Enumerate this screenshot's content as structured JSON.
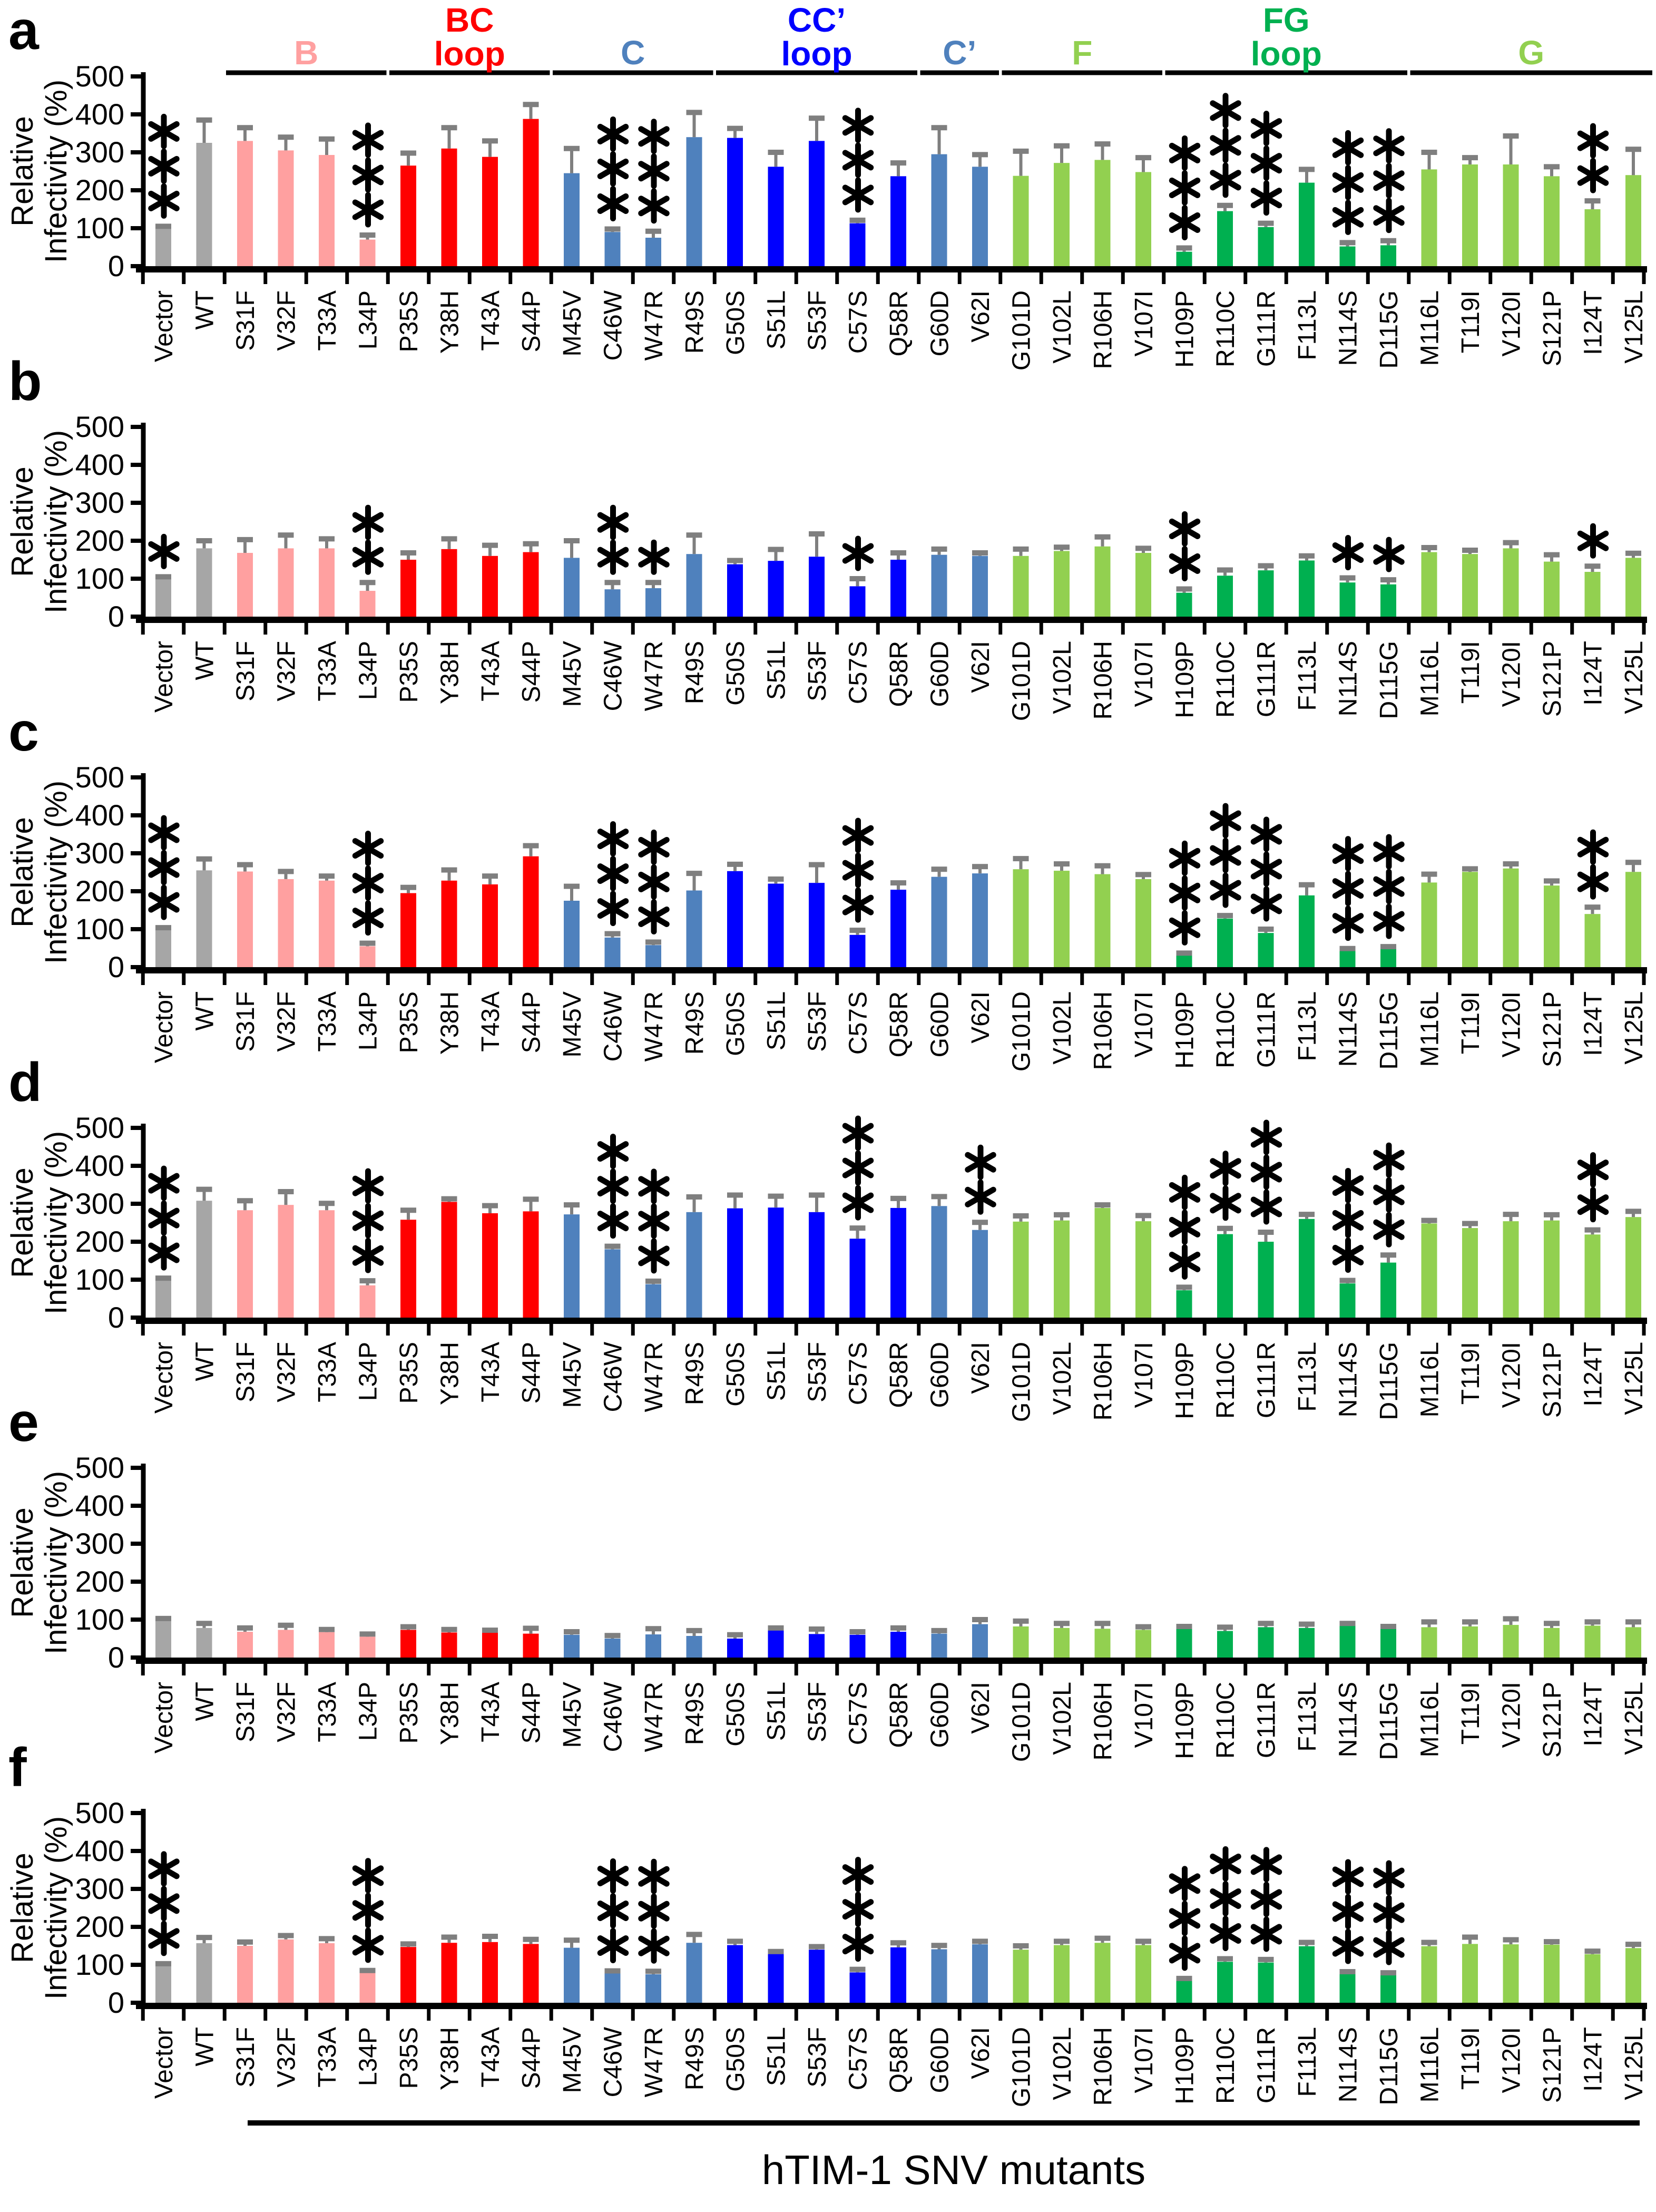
{
  "figure": {
    "panel_letters": [
      "a",
      "b",
      "c",
      "d",
      "e",
      "f"
    ],
    "xaxis_title": "hTIM-1 SNV mutants",
    "ylabel_lines": [
      "Relative",
      "Infectivity (%)"
    ],
    "colors": {
      "gray": "#A6A6A6",
      "pink": "#FFA0A0",
      "red": "#FF0000",
      "steel": "#4F81BD",
      "blue": "#0000FF",
      "lightgreen": "#92D050",
      "green": "#00B050",
      "error": "#7F7F7F",
      "axis": "#000000"
    }
  },
  "chart_data": {
    "type": "bar",
    "title": "",
    "xlabel": "hTIM-1 SNV mutants",
    "ylabel": "Relative Infectivity (%)",
    "ylim": [
      0,
      500
    ],
    "yticks": [
      0,
      100,
      200,
      300,
      400,
      500
    ],
    "grid": false,
    "legend": "none",
    "categories": [
      "Vector",
      "WT",
      "S31F",
      "V32F",
      "T33A",
      "L34P",
      "P35S",
      "Y38H",
      "T43A",
      "S44P",
      "M45V",
      "C46W",
      "W47R",
      "R49S",
      "G50S",
      "S51L",
      "S53F",
      "C57S",
      "Q58R",
      "G60D",
      "V62I",
      "G101D",
      "V102L",
      "R106H",
      "V107I",
      "H109P",
      "R110C",
      "G111R",
      "F113L",
      "N114S",
      "D115G",
      "M116L",
      "T119I",
      "V120I",
      "S121P",
      "I124T",
      "V125L"
    ],
    "bar_color_keys": [
      "gray",
      "gray",
      "pink",
      "pink",
      "pink",
      "pink",
      "red",
      "red",
      "red",
      "red",
      "steel",
      "steel",
      "steel",
      "steel",
      "blue",
      "blue",
      "blue",
      "blue",
      "blue",
      "steel",
      "steel",
      "lightgreen",
      "lightgreen",
      "lightgreen",
      "lightgreen",
      "green",
      "green",
      "green",
      "green",
      "green",
      "green",
      "lightgreen",
      "lightgreen",
      "lightgreen",
      "lightgreen",
      "lightgreen",
      "lightgreen"
    ],
    "groups": [
      {
        "label_lines": [
          "B"
        ],
        "color_key": "pink",
        "from": "S31F",
        "to": "L34P"
      },
      {
        "label_lines": [
          "BC",
          "loop"
        ],
        "color_key": "red",
        "from": "P35S",
        "to": "S44P"
      },
      {
        "label_lines": [
          "C"
        ],
        "color_key": "steel",
        "from": "M45V",
        "to": "R49S"
      },
      {
        "label_lines": [
          "CC’",
          "loop"
        ],
        "color_key": "blue",
        "from": "G50S",
        "to": "Q58R"
      },
      {
        "label_lines": [
          "C’"
        ],
        "color_key": "steel",
        "from": "G60D",
        "to": "V62I"
      },
      {
        "label_lines": [
          "F"
        ],
        "color_key": "lightgreen",
        "from": "G101D",
        "to": "V107I"
      },
      {
        "label_lines": [
          "FG",
          "loop"
        ],
        "color_key": "green",
        "from": "H109P",
        "to": "D115G"
      },
      {
        "label_lines": [
          "G"
        ],
        "color_key": "lightgreen",
        "from": "M116L",
        "to": "V125L"
      }
    ],
    "panels": [
      {
        "letter": "a",
        "values": [
          100,
          325,
          330,
          305,
          293,
          70,
          265,
          310,
          288,
          388,
          245,
          90,
          75,
          340,
          338,
          262,
          330,
          113,
          237,
          295,
          262,
          238,
          272,
          280,
          248,
          38,
          145,
          103,
          220,
          52,
          55,
          255,
          268,
          268,
          237,
          150,
          240
        ],
        "errors": [
          5,
          60,
          35,
          35,
          42,
          12,
          33,
          55,
          42,
          38,
          65,
          8,
          17,
          65,
          25,
          38,
          60,
          8,
          35,
          70,
          32,
          65,
          45,
          42,
          38,
          10,
          15,
          10,
          35,
          10,
          12,
          45,
          18,
          75,
          25,
          22,
          68
        ],
        "significance": {
          "Vector": "***",
          "L34P": "***",
          "C46W": "***",
          "W47R": "***",
          "C57S": "***",
          "H109P": "***",
          "R110C": "***",
          "G111R": "***",
          "N114S": "***",
          "D115G": "***",
          "I124T": "**"
        }
      },
      {
        "letter": "b",
        "values": [
          100,
          180,
          168,
          180,
          180,
          68,
          150,
          178,
          160,
          170,
          155,
          72,
          75,
          165,
          138,
          147,
          158,
          80,
          150,
          163,
          160,
          160,
          173,
          185,
          168,
          63,
          108,
          122,
          148,
          90,
          85,
          170,
          165,
          180,
          145,
          118,
          155
        ],
        "errors": [
          5,
          20,
          35,
          35,
          25,
          22,
          18,
          27,
          28,
          22,
          45,
          18,
          15,
          50,
          10,
          30,
          60,
          20,
          18,
          15,
          8,
          18,
          10,
          25,
          12,
          10,
          15,
          12,
          12,
          12,
          12,
          12,
          10,
          15,
          18,
          15,
          12
        ],
        "significance": {
          "Vector": "*",
          "L34P": "**",
          "C46W": "**",
          "W47R": "*",
          "C57S": "*",
          "H109P": "**",
          "N114S": "*",
          "D115G": "*",
          "I124T": "*"
        }
      },
      {
        "letter": "c",
        "values": [
          100,
          255,
          252,
          232,
          228,
          55,
          195,
          228,
          218,
          292,
          175,
          78,
          58,
          202,
          253,
          220,
          222,
          85,
          204,
          238,
          247,
          258,
          254,
          245,
          232,
          31,
          128,
          90,
          189,
          43,
          48,
          223,
          251,
          260,
          215,
          140,
          251
        ],
        "errors": [
          4,
          30,
          18,
          20,
          12,
          8,
          15,
          28,
          22,
          28,
          38,
          10,
          8,
          45,
          18,
          12,
          48,
          12,
          18,
          20,
          18,
          28,
          18,
          22,
          12,
          6,
          8,
          10,
          28,
          6,
          6,
          22,
          8,
          12,
          12,
          18,
          25
        ],
        "significance": {
          "Vector": "***",
          "L34P": "***",
          "C46W": "***",
          "W47R": "***",
          "C57S": "***",
          "H109P": "***",
          "R110C": "***",
          "G111R": "***",
          "N114S": "***",
          "D115G": "***",
          "I124T": "**"
        }
      },
      {
        "letter": "d",
        "values": [
          100,
          308,
          283,
          297,
          283,
          85,
          258,
          305,
          275,
          280,
          272,
          180,
          88,
          278,
          288,
          290,
          278,
          208,
          289,
          294,
          231,
          253,
          256,
          289,
          254,
          72,
          220,
          200,
          260,
          90,
          145,
          248,
          236,
          254,
          256,
          219,
          265
        ],
        "errors": [
          4,
          30,
          25,
          35,
          18,
          12,
          25,
          8,
          20,
          32,
          25,
          8,
          8,
          40,
          35,
          30,
          45,
          28,
          25,
          25,
          20,
          15,
          15,
          8,
          15,
          8,
          15,
          25,
          12,
          8,
          20,
          8,
          12,
          18,
          15,
          12,
          15
        ],
        "significance": {
          "Vector": "***",
          "L34P": "***",
          "C46W": "***",
          "W47R": "***",
          "C57S": "***",
          "V62I": "**",
          "H109P": "***",
          "R110C": "**",
          "G111R": "***",
          "N114S": "***",
          "D115G": "***",
          "I124T": "**"
        }
      },
      {
        "letter": "e",
        "values": [
          100,
          78,
          68,
          73,
          67,
          55,
          73,
          66,
          66,
          63,
          60,
          50,
          61,
          57,
          50,
          73,
          62,
          60,
          68,
          63,
          88,
          82,
          78,
          76,
          73,
          77,
          70,
          80,
          78,
          86,
          76,
          80,
          82,
          86,
          78,
          84,
          80
        ],
        "errors": [
          3,
          12,
          10,
          12,
          7,
          7,
          8,
          8,
          6,
          14,
          8,
          8,
          15,
          14,
          10,
          5,
          13,
          8,
          10,
          8,
          12,
          14,
          12,
          14,
          8,
          5,
          10,
          10,
          10,
          4,
          6,
          14,
          12,
          16,
          12,
          10,
          14
        ],
        "significance": {}
      },
      {
        "letter": "f",
        "values": [
          100,
          157,
          150,
          167,
          157,
          80,
          147,
          158,
          160,
          155,
          145,
          78,
          75,
          158,
          152,
          130,
          140,
          80,
          146,
          141,
          154,
          140,
          152,
          158,
          152,
          59,
          108,
          106,
          149,
          76,
          73,
          149,
          155,
          154,
          153,
          128,
          144
        ],
        "errors": [
          3,
          15,
          10,
          10,
          12,
          5,
          8,
          15,
          15,
          12,
          20,
          6,
          8,
          22,
          10,
          5,
          8,
          8,
          12,
          10,
          8,
          10,
          10,
          12,
          10,
          5,
          8,
          8,
          10,
          6,
          6,
          10,
          18,
          12,
          8,
          8,
          10
        ],
        "significance": {
          "Vector": "***",
          "L34P": "***",
          "C46W": "***",
          "W47R": "***",
          "C57S": "***",
          "H109P": "***",
          "R110C": "***",
          "G111R": "***",
          "N114S": "***",
          "D115G": "***"
        }
      }
    ]
  }
}
